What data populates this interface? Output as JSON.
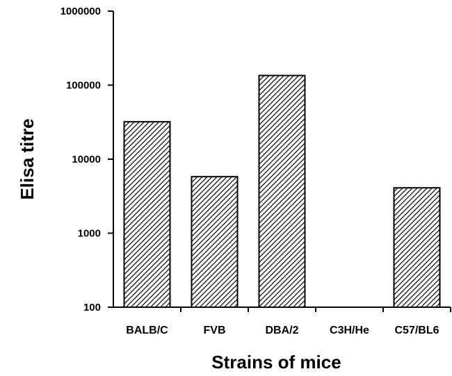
{
  "chart_data": {
    "type": "bar",
    "xlabel": "Strains of mice",
    "ylabel": "Elisa titre",
    "yscale": "log",
    "ylim": [
      100,
      1000000
    ],
    "yticks": [
      100,
      1000,
      10000,
      100000,
      1000000
    ],
    "ytick_labels": [
      "100",
      "1000",
      "10000",
      "100000",
      "1000000"
    ],
    "categories": [
      "BALB/C",
      "FVB",
      "DBA/2",
      "C3H/He",
      "C57/BL6"
    ],
    "values": [
      32000,
      5800,
      135000,
      100,
      4100
    ],
    "bar_fill": "diagonal-hatch",
    "grid": false,
    "legend": "none"
  }
}
